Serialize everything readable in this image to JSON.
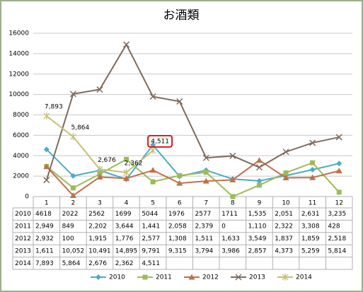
{
  "chart_data": {
    "type": "line",
    "title": "お酒類",
    "categories": [
      "1",
      "2",
      "3",
      "4",
      "5",
      "6",
      "7",
      "8",
      "9",
      "10",
      "11",
      "12"
    ],
    "ylim": [
      0,
      16000
    ],
    "yticks": [
      0,
      2000,
      4000,
      6000,
      8000,
      10000,
      12000,
      14000,
      16000
    ],
    "grid": true,
    "series": [
      {
        "name": "2010",
        "color": "#4bacc6",
        "marker": "diamond",
        "values": [
          4618,
          2022,
          2562,
          1699,
          5044,
          1976,
          2577,
          1711,
          1535,
          2051,
          2631,
          3235
        ],
        "value_labels": [
          "4618",
          "2022",
          "2562",
          "1699",
          "5044",
          "1976",
          "2577",
          "1711",
          "1,535",
          "2,051",
          "2,631",
          "3,235"
        ]
      },
      {
        "name": "2011",
        "color": "#9bbb59",
        "marker": "square",
        "values": [
          2949,
          849,
          2202,
          3644,
          1441,
          2058,
          2379,
          0,
          1110,
          2322,
          3308,
          428
        ],
        "value_labels": [
          "2,949",
          "849",
          "2,202",
          "3,644",
          "1,441",
          "2,058",
          "2,379",
          "0",
          "1,110",
          "2,322",
          "3,308",
          "428"
        ]
      },
      {
        "name": "2012",
        "color": "#c0704a",
        "marker": "triangle",
        "values": [
          2932,
          100,
          1915,
          1776,
          2577,
          1308,
          1511,
          1633,
          3549,
          1837,
          1859,
          2518
        ],
        "value_labels": [
          "2,932",
          "100",
          "1,915",
          "1,776",
          "2,577",
          "1,308",
          "1,511",
          "1,633",
          "3,549",
          "1,837",
          "1,859",
          "2,518"
        ]
      },
      {
        "name": "2013",
        "color": "#7f6a5c",
        "marker": "x",
        "values": [
          1611,
          10052,
          10491,
          14895,
          9791,
          9315,
          3794,
          3986,
          2857,
          4373,
          5259,
          5814
        ],
        "value_labels": [
          "1,611",
          "10,052",
          "10,491",
          "14,895",
          "9,791",
          "9,315",
          "3,794",
          "3,986",
          "2,857",
          "4,373",
          "5,259",
          "5,814"
        ]
      },
      {
        "name": "2014",
        "color": "#c8bf78",
        "marker": "star",
        "data_labels": true,
        "values": [
          7893,
          5864,
          2676,
          2362,
          4511,
          null,
          null,
          null,
          null,
          null,
          null,
          null
        ],
        "value_labels": [
          "7,893",
          "5,864",
          "2,676",
          "2,362",
          "4,511",
          null,
          null,
          null,
          null,
          null,
          null,
          null
        ]
      }
    ]
  }
}
